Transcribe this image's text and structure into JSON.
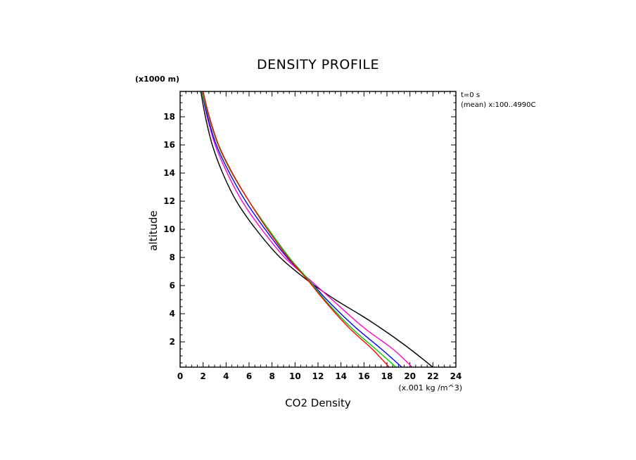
{
  "chart_data": {
    "type": "line",
    "title": "DENSITY PROFILE",
    "xlabel": "CO2 Density",
    "ylabel": "altitude",
    "x_unit": "(x.001 kg /m^3)",
    "y_unit": "(x1000 m)",
    "notes": [
      "t=0  s",
      "(mean) x:100..4990C"
    ],
    "xlim": [
      0,
      24
    ],
    "ylim": [
      0.2,
      19.8
    ],
    "xticks": [
      "0",
      "2",
      "4",
      "6",
      "8",
      "10",
      "12",
      "14",
      "16",
      "18",
      "20",
      "22",
      "24"
    ],
    "yticks": [
      "2",
      "4",
      "6",
      "8",
      "10",
      "12",
      "14",
      "16",
      "18"
    ],
    "grid": false,
    "series": [
      {
        "color": "#000000",
        "points": [
          [
            1.8,
            19.8
          ],
          [
            2.2,
            18
          ],
          [
            2.8,
            16
          ],
          [
            3.7,
            14
          ],
          [
            4.9,
            12
          ],
          [
            6.6,
            10
          ],
          [
            8.7,
            8
          ],
          [
            11.2,
            6.3
          ],
          [
            13.5,
            5.0
          ],
          [
            16.5,
            3.5
          ],
          [
            19.5,
            1.8
          ],
          [
            22.0,
            0.2
          ]
        ]
      },
      {
        "color": "#ff00cc",
        "points": [
          [
            1.9,
            19.8
          ],
          [
            2.35,
            18
          ],
          [
            3.05,
            16
          ],
          [
            4.1,
            14
          ],
          [
            5.4,
            12
          ],
          [
            7.1,
            10
          ],
          [
            9.1,
            8
          ],
          [
            11.3,
            6.4
          ],
          [
            13.5,
            4.8
          ],
          [
            16.0,
            3.0
          ],
          [
            18.5,
            1.5
          ],
          [
            20.2,
            0.2
          ]
        ]
      },
      {
        "color": "#0000ff",
        "points": [
          [
            1.9,
            19.8
          ],
          [
            2.4,
            18
          ],
          [
            3.15,
            16
          ],
          [
            4.3,
            14
          ],
          [
            5.7,
            12
          ],
          [
            7.4,
            10
          ],
          [
            9.3,
            8
          ],
          [
            11.2,
            6.4
          ],
          [
            13.0,
            4.8
          ],
          [
            15.3,
            3.0
          ],
          [
            17.5,
            1.5
          ],
          [
            19.3,
            0.2
          ]
        ]
      },
      {
        "color": "#00cc00",
        "points": [
          [
            1.9,
            19.8
          ],
          [
            2.5,
            18
          ],
          [
            3.3,
            16
          ],
          [
            4.5,
            14
          ],
          [
            6.0,
            12
          ],
          [
            7.7,
            10
          ],
          [
            9.5,
            8
          ],
          [
            11.2,
            6.4
          ],
          [
            12.8,
            4.8
          ],
          [
            14.9,
            3.0
          ],
          [
            17.0,
            1.5
          ],
          [
            18.8,
            0.2
          ]
        ]
      },
      {
        "color": "#ff0000",
        "points": [
          [
            2.0,
            19.8
          ],
          [
            2.55,
            18
          ],
          [
            3.35,
            16
          ],
          [
            4.55,
            14
          ],
          [
            6.0,
            12
          ],
          [
            7.6,
            10
          ],
          [
            9.4,
            8
          ],
          [
            11.1,
            6.4
          ],
          [
            12.7,
            4.8
          ],
          [
            14.7,
            3.0
          ],
          [
            16.7,
            1.5
          ],
          [
            18.2,
            0.2
          ]
        ]
      }
    ]
  }
}
